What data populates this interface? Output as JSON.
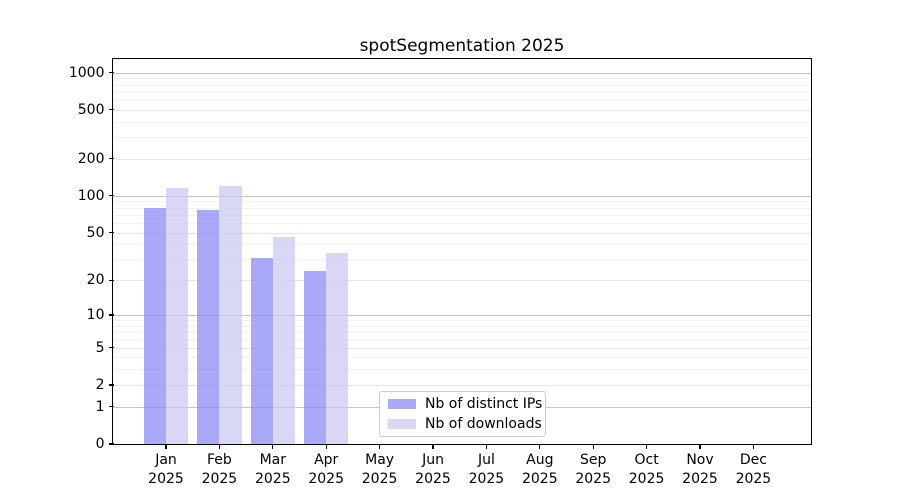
{
  "chart_data": {
    "type": "bar",
    "title": "spotSegmentation 2025",
    "y_scale": "log10(1+y)",
    "grid": "on",
    "categories": [
      "Jan 2025",
      "Feb 2025",
      "Mar 2025",
      "Apr 2025",
      "May 2025",
      "Jun 2025",
      "Jul 2025",
      "Aug 2025",
      "Sep 2025",
      "Oct 2025",
      "Nov 2025",
      "Dec 2025"
    ],
    "series": [
      {
        "name": "Nb of distinct IPs",
        "color": "rgba(133,133,245,0.7)",
        "values": [
          80,
          76,
          31,
          24,
          null,
          null,
          null,
          null,
          null,
          null,
          null,
          null
        ]
      },
      {
        "name": "Nb of downloads",
        "color": "rgba(199,199,242,0.7)",
        "values": [
          117,
          120,
          46,
          34,
          null,
          null,
          null,
          null,
          null,
          null,
          null,
          null
        ]
      }
    ],
    "y_axis": {
      "ticks": [
        0,
        1,
        2,
        5,
        10,
        20,
        50,
        100,
        200,
        500,
        1000
      ],
      "top_value": 1270,
      "ylim": [
        0,
        1270
      ]
    },
    "legend": {
      "position": "bottom-center",
      "entries": [
        "Nb of distinct IPs",
        "Nb of downloads"
      ]
    },
    "colors": {
      "grid_decade": "#c6c6c6",
      "grid_mid": "#e6e6e6",
      "grid_minor": "#f2f2f2",
      "axis": "#000000",
      "background": "#ffffff"
    }
  }
}
